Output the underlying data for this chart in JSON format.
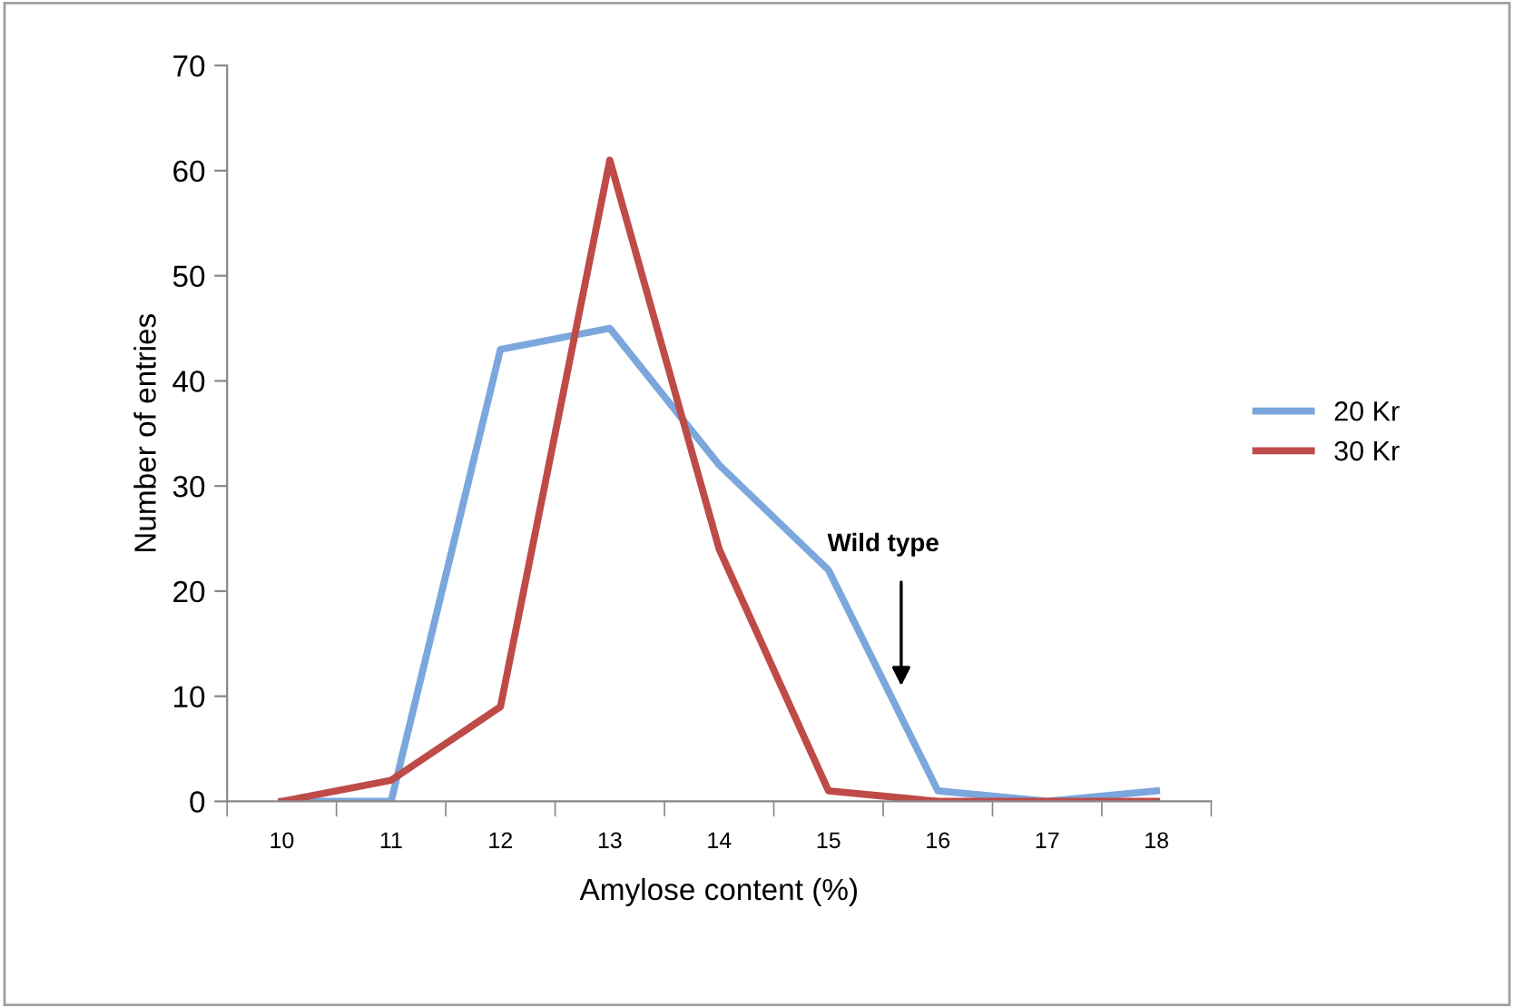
{
  "chart_data": {
    "type": "line",
    "xlabel": "Amylose content (%)",
    "ylabel": "Number of entries",
    "categories": [
      "10",
      "11",
      "12",
      "13",
      "14",
      "15",
      "16",
      "17",
      "18"
    ],
    "series": [
      {
        "name": "20 Kr",
        "color": "#7ba7dc",
        "values": [
          0,
          0,
          43,
          45,
          32,
          22,
          1,
          0,
          1
        ]
      },
      {
        "name": "30 Kr",
        "color": "#be4b48",
        "values": [
          0,
          2,
          9,
          61,
          24,
          1,
          0,
          0,
          0
        ]
      }
    ],
    "ylim": [
      0,
      70
    ],
    "yticks": [
      0,
      10,
      20,
      30,
      40,
      50,
      60,
      70
    ],
    "grid": false,
    "legend": "right",
    "marker": "none",
    "line_style": "solid",
    "annotations": [
      "Wild type"
    ]
  }
}
